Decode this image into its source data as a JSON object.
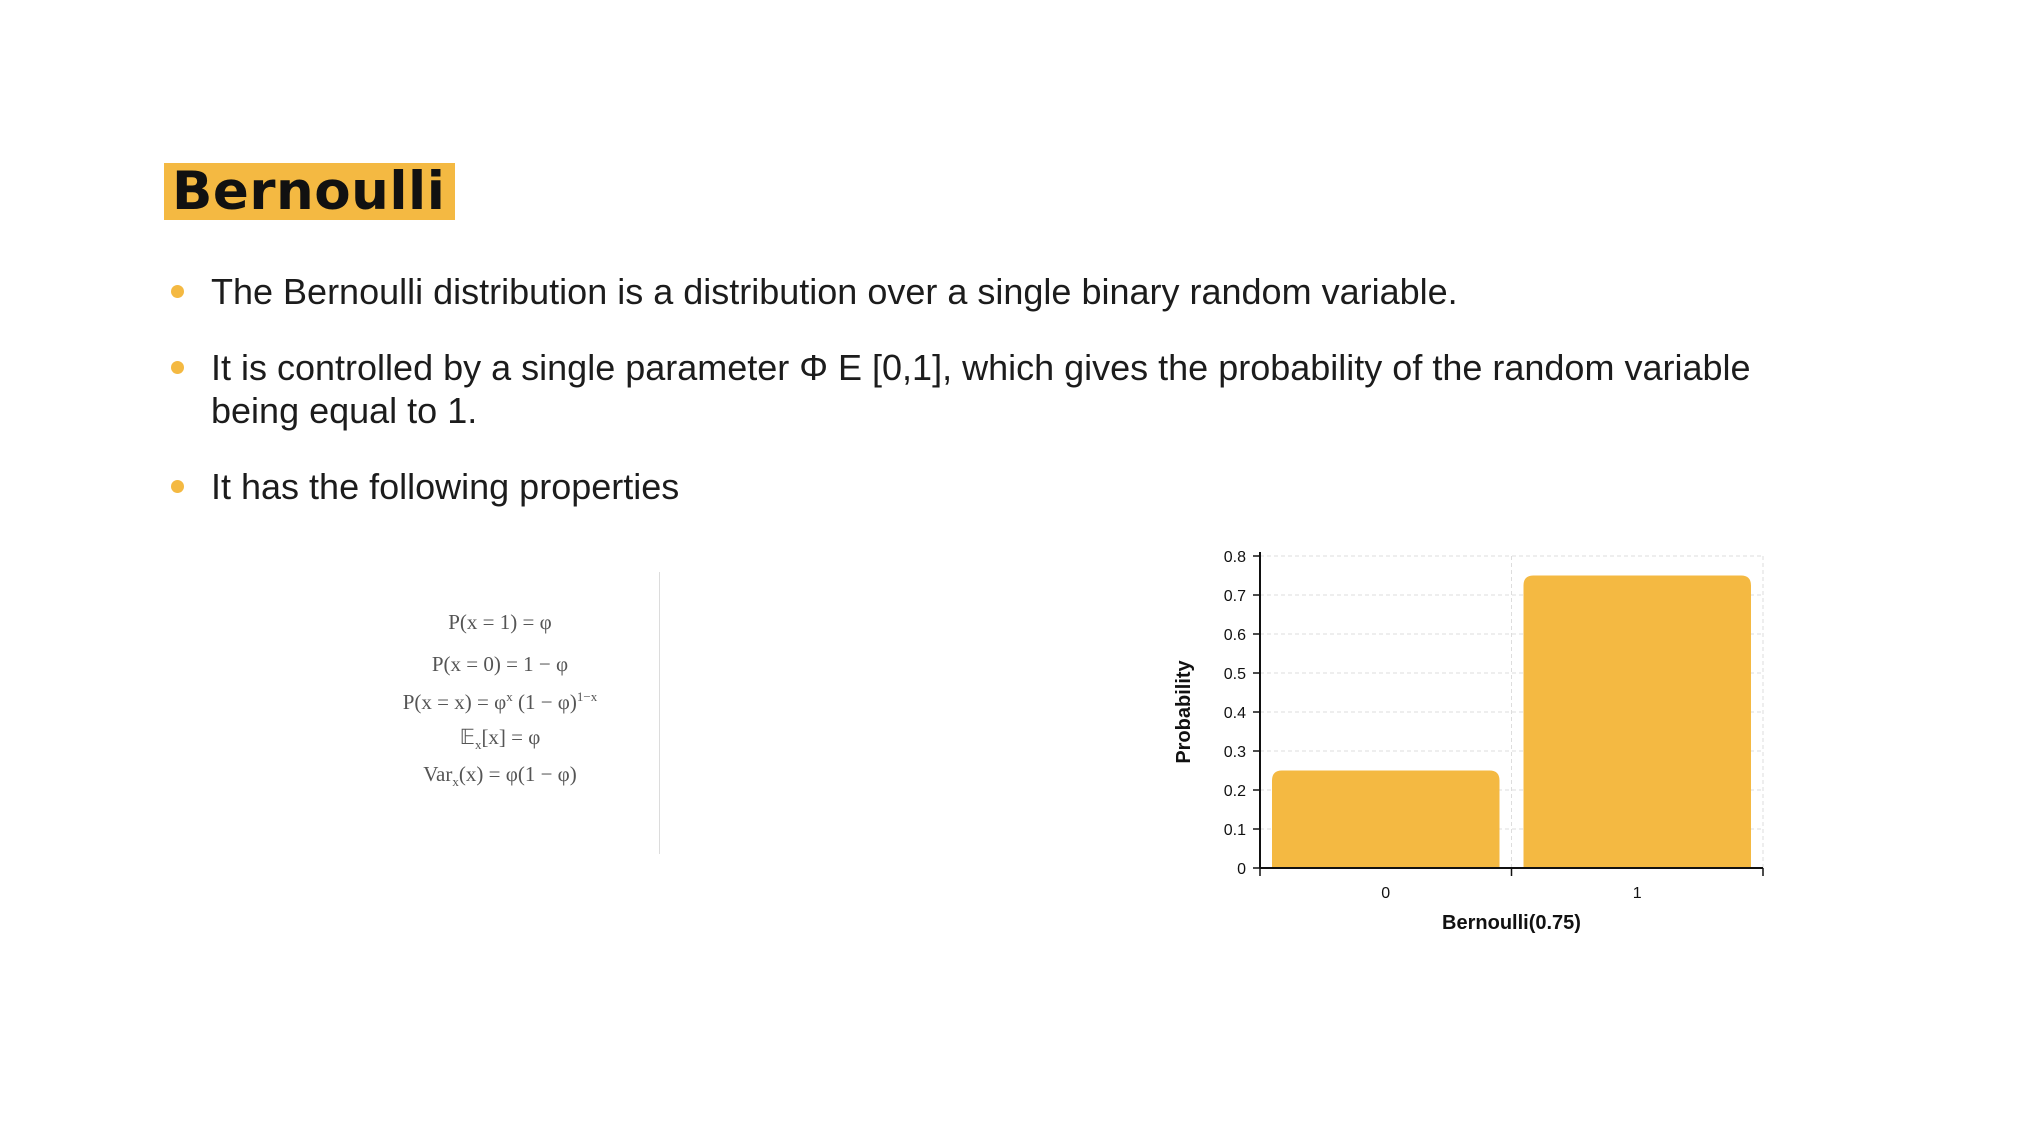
{
  "slide": {
    "title": "Bernoulli",
    "bullets": [
      "The Bernoulli distribution is a distribution over a single binary random variable.",
      "It is controlled by a single parameter Φ Ε [0,1], which gives the probability of the random variable being equal to 1.",
      "It has the following properties"
    ]
  },
  "formulas": [
    {
      "pre": "P(x = 1) = φ",
      "sup": "",
      "post": ""
    },
    {
      "pre": "P(x = 0) = 1 − φ",
      "sup": "",
      "post": ""
    },
    {
      "pre": "P(x = x) = φ",
      "sup": "x",
      "post": " (1 − φ)",
      "sup2": "1−x"
    },
    {
      "pre": "𝔼",
      "sub": "x",
      "post": "[x] = φ"
    },
    {
      "pre": "Var",
      "sub": "x",
      "post": "(x) = φ(1 − φ)"
    }
  ],
  "colors": {
    "accent": "#f4b942"
  },
  "chart_data": {
    "type": "bar",
    "categories": [
      "0",
      "1"
    ],
    "values": [
      0.25,
      0.75
    ],
    "title": "",
    "xlabel": "Bernoulli(0.75)",
    "ylabel": "Probability",
    "ylim": [
      0,
      0.8
    ],
    "yticks": [
      "0",
      "0.1",
      "0.2",
      "0.3",
      "0.4",
      "0.5",
      "0.6",
      "0.7",
      "0.8"
    ],
    "grid": true,
    "color": "#f4b942"
  }
}
